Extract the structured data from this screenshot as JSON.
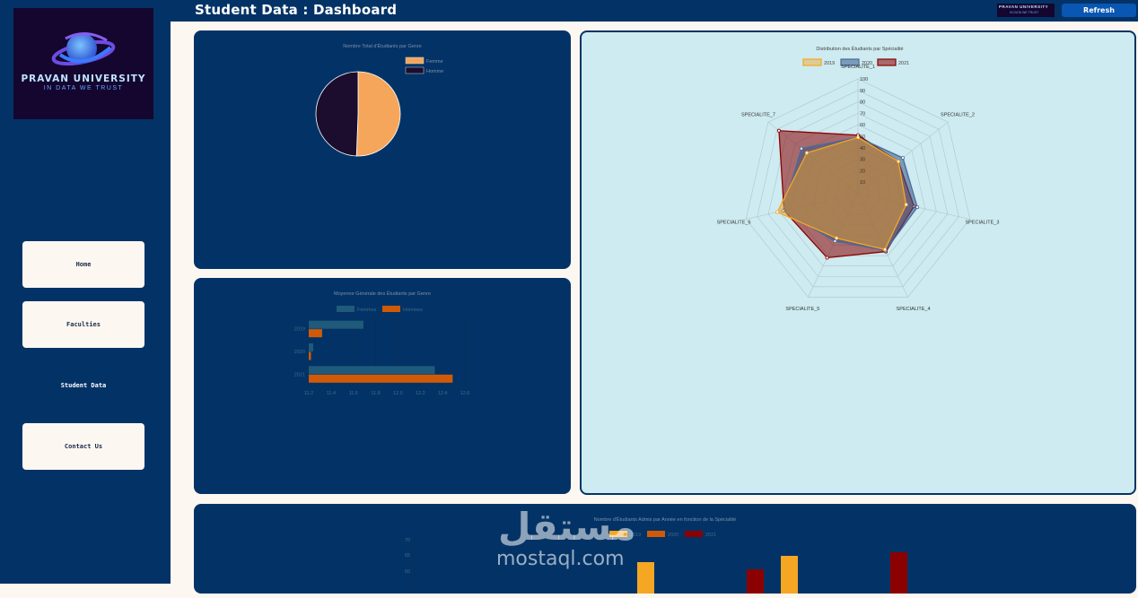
{
  "header": {
    "title": "Student Data : Dashboard",
    "refresh_label": "Refresh",
    "mini_logo_name": "PRAVAN UNIVERSITY",
    "mini_logo_tag": "IN DATA WE TRUST"
  },
  "logo": {
    "name": "PRAVAN UNIVERSITY",
    "tagline": "IN DATA WE TRUST"
  },
  "nav": {
    "home": "Home",
    "faculties": "Faculties",
    "student_data": "Student Data",
    "contact": "Contact Us"
  },
  "colors": {
    "navy": "#033366",
    "cream": "#fcf7f1",
    "femme": "#f5a65b",
    "homme": "#1c0d2e",
    "y2019": "#f5a623",
    "y2020": "#4a6a99",
    "y2021": "#8b0000"
  },
  "watermark": {
    "arabic": "مستقل",
    "latin": "mostaql.com"
  },
  "chart_data": [
    {
      "type": "pie",
      "title": "Nombre Total d'Étudiants par Genre",
      "labels": [
        "Femme",
        "Homme"
      ],
      "values": [
        50.6,
        49.4
      ],
      "legend": "top-right"
    },
    {
      "type": "bar",
      "orientation": "horizontal",
      "title": "Moyenne Générale des Étudiants par Genre",
      "categories": [
        "2019",
        "2020",
        "2021"
      ],
      "series": [
        {
          "name": "Femmes",
          "values": [
            11.69,
            11.24,
            12.33
          ]
        },
        {
          "name": "Hommes",
          "values": [
            11.32,
            11.22,
            12.49
          ]
        }
      ],
      "xlim": [
        11.2,
        12.6
      ],
      "xticks": [
        "11.2",
        "11.4",
        "11.6",
        "11.8",
        "12.0",
        "12.2",
        "12.4",
        "12.6"
      ],
      "legend": "top"
    },
    {
      "type": "radar",
      "title": "Distribution des Étudiants par Spécialité",
      "axes": [
        "SPECIALITE_1",
        "SPECIALITE_2",
        "SPECIALITE_3",
        "SPECIALITE_4",
        "SPECIALITE_5",
        "SPECIALITE_6",
        "SPECIALITE_7"
      ],
      "series": [
        {
          "name": "2019",
          "values": [
            49,
            45,
            43,
            54,
            43,
            72,
            57
          ]
        },
        {
          "name": "2020",
          "values": [
            49,
            50,
            53,
            55,
            46,
            67,
            63
          ]
        },
        {
          "name": "2021",
          "values": [
            51,
            45,
            50,
            56,
            62,
            66,
            88
          ]
        }
      ],
      "rticks": [
        "10",
        "20",
        "30",
        "40",
        "50",
        "60",
        "70",
        "80",
        "90",
        "100"
      ],
      "rlim": [
        0,
        100
      ],
      "legend": "top"
    },
    {
      "type": "bar",
      "title": "Nombre d'Étudiants Admis par Année en fonction de la Spécialité",
      "series": [
        {
          "name": "2019"
        },
        {
          "name": "2020"
        },
        {
          "name": "2021"
        }
      ],
      "yticks": [
        "70",
        "65",
        "60"
      ],
      "legend": "top"
    }
  ]
}
